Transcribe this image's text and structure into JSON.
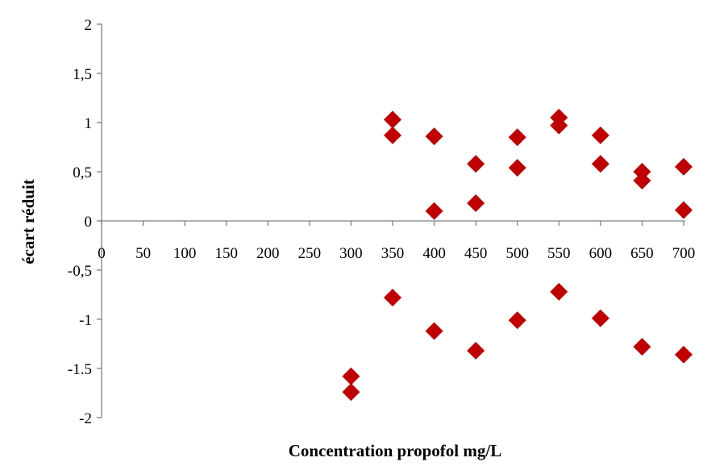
{
  "chart_data": {
    "type": "scatter",
    "title": "",
    "xlabel": "Concentration propofol mg/L",
    "ylabel": "écart réduit",
    "xlim": [
      0,
      700
    ],
    "ylim": [
      -2,
      2
    ],
    "x_ticks": [
      0,
      50,
      100,
      150,
      200,
      250,
      300,
      350,
      400,
      450,
      500,
      550,
      600,
      650,
      700
    ],
    "y_ticks": [
      {
        "value": 2,
        "label": "2"
      },
      {
        "value": 1.5,
        "label": "1,5"
      },
      {
        "value": 1,
        "label": "1"
      },
      {
        "value": 0.5,
        "label": "0,5"
      },
      {
        "value": 0,
        "label": "0"
      },
      {
        "value": -0.5,
        "label": "-0,5"
      },
      {
        "value": -1,
        "label": "-1"
      },
      {
        "value": -1.5,
        "label": "-1.5"
      },
      {
        "value": -2,
        "label": "-2"
      }
    ],
    "grid": false,
    "legend": "none",
    "marker": "diamond",
    "marker_color": "#c00000",
    "series": [
      {
        "points": [
          {
            "x": 300,
            "y": -1.58
          },
          {
            "x": 300,
            "y": -1.74
          },
          {
            "x": 350,
            "y": 1.03
          },
          {
            "x": 350,
            "y": 0.87
          },
          {
            "x": 350,
            "y": -0.78
          },
          {
            "x": 400,
            "y": 0.86
          },
          {
            "x": 400,
            "y": 0.1
          },
          {
            "x": 400,
            "y": -1.12
          },
          {
            "x": 450,
            "y": 0.58
          },
          {
            "x": 450,
            "y": 0.18
          },
          {
            "x": 450,
            "y": -1.32
          },
          {
            "x": 500,
            "y": 0.85
          },
          {
            "x": 500,
            "y": 0.54
          },
          {
            "x": 500,
            "y": -1.01
          },
          {
            "x": 550,
            "y": 1.05
          },
          {
            "x": 550,
            "y": 0.97
          },
          {
            "x": 550,
            "y": -0.72
          },
          {
            "x": 600,
            "y": 0.87
          },
          {
            "x": 600,
            "y": 0.58
          },
          {
            "x": 600,
            "y": -0.99
          },
          {
            "x": 650,
            "y": 0.5
          },
          {
            "x": 650,
            "y": 0.41
          },
          {
            "x": 650,
            "y": -1.28
          },
          {
            "x": 700,
            "y": 0.55
          },
          {
            "x": 700,
            "y": 0.11
          },
          {
            "x": 700,
            "y": -1.36
          }
        ]
      }
    ]
  }
}
